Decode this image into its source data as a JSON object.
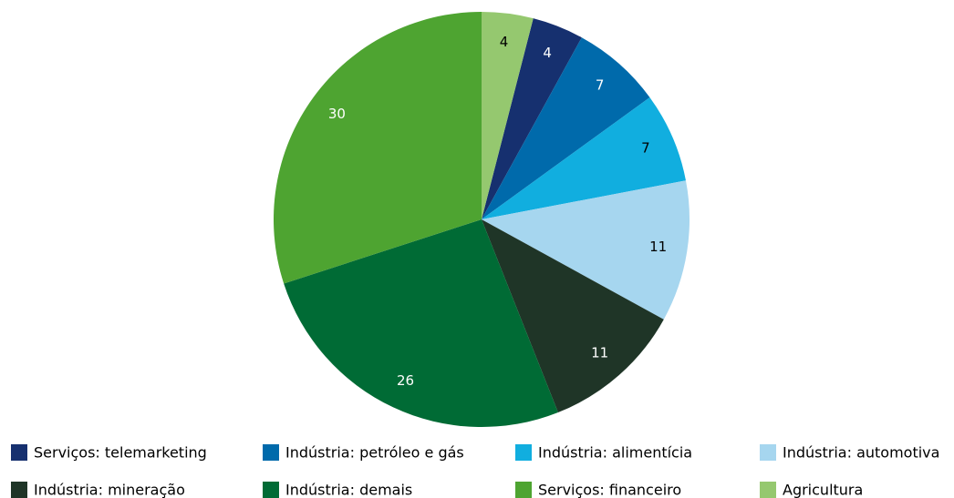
{
  "chart_data": {
    "type": "pie",
    "categories": [
      "Serviços: telemarketing",
      "Indústria: petróleo e gás",
      "Indústria: alimentícia",
      "Indústria: automotiva",
      "Indústria: mineração",
      "Indústria: demais",
      "Serviços: financeiro",
      "Agricultura"
    ],
    "values": [
      4,
      7,
      7,
      11,
      11,
      26,
      30,
      4
    ],
    "colors": [
      "#16306f",
      "#006aab",
      "#11aedf",
      "#a6d6ef",
      "#1f3527",
      "#006b35",
      "#4ea431",
      "#95c86f"
    ],
    "legend": "bottom"
  }
}
